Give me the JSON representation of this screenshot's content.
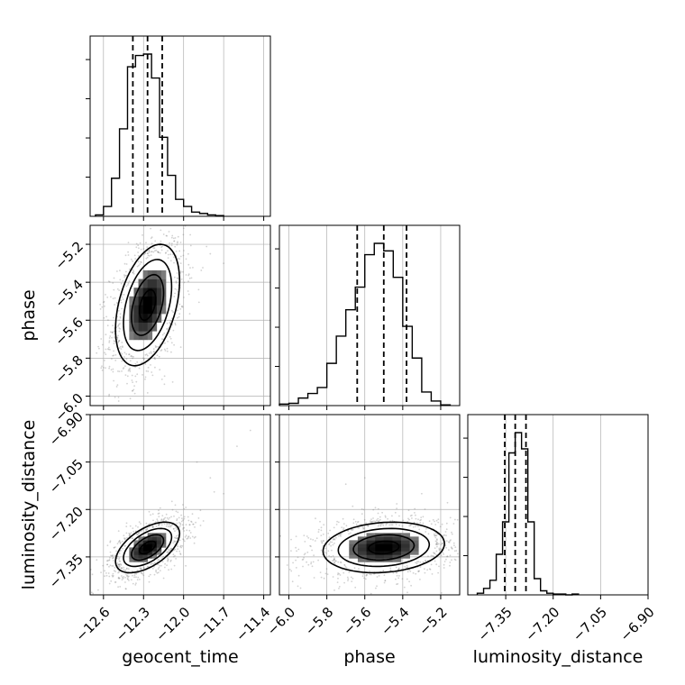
{
  "chart_data": {
    "type": "corner",
    "parameters": [
      "geocent_time",
      "phase",
      "luminosity_distance"
    ],
    "axis_labels": {
      "geocent_time": "geocent_time",
      "phase": "phase",
      "luminosity_distance": "luminosity_distance"
    },
    "ticks": {
      "geocent_time": [
        "−12.6",
        "−12.3",
        "−12.0",
        "−11.7",
        "−11.4"
      ],
      "phase": [
        "−6.0",
        "−5.8",
        "−5.6",
        "−5.4",
        "−5.2"
      ],
      "luminosity_distance": [
        "−7.35",
        "−7.20",
        "−7.05",
        "−6.90"
      ]
    },
    "ranges": {
      "geocent_time": [
        -12.7,
        -11.35
      ],
      "phase": [
        -6.05,
        -5.1
      ],
      "luminosity_distance": [
        -7.47,
        -6.9
      ]
    },
    "quantiles": {
      "geocent_time": [
        -12.38,
        -12.27,
        -12.16
      ],
      "phase": [
        -5.64,
        -5.5,
        -5.38
      ],
      "luminosity_distance": [
        -7.353,
        -7.32,
        -7.286
      ]
    },
    "histograms": {
      "geocent_time": {
        "bin_edges": [
          -12.66,
          -12.6,
          -12.54,
          -12.48,
          -12.42,
          -12.36,
          -12.3,
          -12.24,
          -12.18,
          -12.12,
          -12.06,
          -12.0,
          -11.94,
          -11.88,
          -11.82,
          -11.76,
          -11.7
        ],
        "counts": [
          2,
          14,
          54,
          124,
          212,
          228,
          230,
          196,
          112,
          58,
          24,
          14,
          6,
          4,
          2,
          1
        ]
      },
      "phase": {
        "bin_edges": [
          -6.05,
          -6.0,
          -5.95,
          -5.9,
          -5.85,
          -5.8,
          -5.75,
          -5.7,
          -5.65,
          -5.6,
          -5.55,
          -5.5,
          -5.45,
          -5.4,
          -5.35,
          -5.3,
          -5.25,
          -5.2,
          -5.15
        ],
        "counts": [
          2,
          3,
          10,
          16,
          24,
          56,
          92,
          127,
          157,
          200,
          215,
          205,
          170,
          105,
          63,
          18,
          6,
          1
        ]
      },
      "luminosity_distance": {
        "bin_edges": [
          -7.44,
          -7.42,
          -7.4,
          -7.38,
          -7.36,
          -7.34,
          -7.32,
          -7.3,
          -7.28,
          -7.26,
          -7.24,
          -7.22,
          -7.2,
          -7.18,
          -7.16,
          -7.14,
          -7.12
        ],
        "counts": [
          2,
          8,
          18,
          50,
          90,
          175,
          200,
          180,
          90,
          20,
          5,
          2,
          1,
          1,
          0,
          1
        ]
      }
    },
    "density_2d": [
      {
        "x": "geocent_time",
        "y": "phase",
        "mean": [
          -12.27,
          -5.52
        ],
        "sd": [
          0.12,
          0.16
        ],
        "rho": 0.4,
        "outliers": [
          [
            -11.8,
            -5.25
          ],
          [
            -11.7,
            -5.3
          ],
          [
            -11.95,
            -5.15
          ],
          [
            -12.6,
            -5.85
          ],
          [
            -12.5,
            -5.95
          ]
        ]
      },
      {
        "x": "geocent_time",
        "y": "luminosity_distance",
        "mean": [
          -12.27,
          -7.32
        ],
        "sd": [
          0.12,
          0.04
        ],
        "rho": 0.55,
        "outliers": [
          [
            -11.6,
            -7.0
          ],
          [
            -11.5,
            -6.95
          ],
          [
            -11.8,
            -7.1
          ],
          [
            -11.9,
            -7.05
          ],
          [
            -11.7,
            -7.15
          ]
        ]
      },
      {
        "x": "phase",
        "y": "luminosity_distance",
        "mean": [
          -5.5,
          -7.32
        ],
        "sd": [
          0.16,
          0.04
        ],
        "rho": 0.15,
        "outliers": [
          [
            -5.4,
            -7.05
          ],
          [
            -5.6,
            -7.1
          ],
          [
            -5.3,
            -7.15
          ],
          [
            -5.7,
            -7.12
          ]
        ]
      }
    ],
    "contour_levels_sigma": [
      0.5,
      1.0,
      1.5,
      2.0
    ],
    "grid": true,
    "colors": {
      "ink": "#000000",
      "grid": "#b0b0b0",
      "scatter": "#7f7f7f"
    }
  }
}
